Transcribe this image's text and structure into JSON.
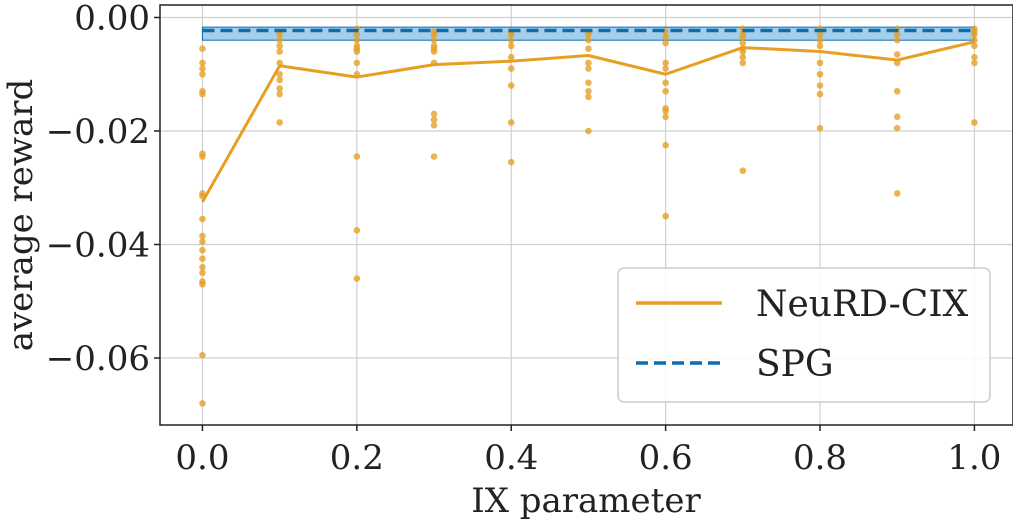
{
  "chart_data": {
    "type": "line",
    "xlabel": "IX parameter",
    "ylabel": "average reward",
    "xlim": [
      -0.055,
      1.05
    ],
    "ylim": [
      -0.0718,
      0.0022
    ],
    "grid": true,
    "legend_position": "lower-right",
    "x_ticks": [
      0.0,
      0.2,
      0.4,
      0.6,
      0.8,
      1.0
    ],
    "x_tick_labels": [
      "0.0",
      "0.2",
      "0.4",
      "0.6",
      "0.8",
      "1.0"
    ],
    "y_ticks": [
      0.0,
      -0.02,
      -0.04,
      -0.06
    ],
    "y_tick_labels": [
      "0.00",
      "−0.02",
      "−0.04",
      "−0.06"
    ],
    "series": [
      {
        "name": "NeuRD-CIX",
        "color": "#e69f23",
        "style": "solid",
        "x": [
          0.0,
          0.1,
          0.2,
          0.3,
          0.4,
          0.5,
          0.6,
          0.7,
          0.8,
          0.9,
          1.0
        ],
        "y": [
          -0.0325,
          -0.0085,
          -0.0105,
          -0.0083,
          -0.0077,
          -0.0067,
          -0.01,
          -0.0053,
          -0.006,
          -0.0075,
          -0.0043
        ]
      },
      {
        "name": "SPG",
        "color": "#0a6eb0",
        "style": "dashed",
        "x": [
          0.0,
          1.0
        ],
        "y": [
          -0.0023,
          -0.0023
        ],
        "band": [
          -0.004,
          -0.0017
        ]
      }
    ],
    "scatter": {
      "color": "#e69f23",
      "points": [
        [
          0.0,
          -0.0055
        ],
        [
          0.0,
          -0.008
        ],
        [
          0.0,
          -0.009
        ],
        [
          0.0,
          -0.01
        ],
        [
          0.0,
          -0.013
        ],
        [
          0.0,
          -0.0135
        ],
        [
          0.0,
          -0.024
        ],
        [
          0.0,
          -0.0245
        ],
        [
          0.0,
          -0.031
        ],
        [
          0.0,
          -0.0315
        ],
        [
          0.0,
          -0.0355
        ],
        [
          0.0,
          -0.0385
        ],
        [
          0.0,
          -0.0395
        ],
        [
          0.0,
          -0.041
        ],
        [
          0.0,
          -0.0425
        ],
        [
          0.0,
          -0.044
        ],
        [
          0.0,
          -0.045
        ],
        [
          0.0,
          -0.0465
        ],
        [
          0.0,
          -0.047
        ],
        [
          0.0,
          -0.0595
        ],
        [
          0.0,
          -0.068
        ],
        [
          0.1,
          -0.0025
        ],
        [
          0.1,
          -0.003
        ],
        [
          0.1,
          -0.004
        ],
        [
          0.1,
          -0.005
        ],
        [
          0.1,
          -0.006
        ],
        [
          0.1,
          -0.008
        ],
        [
          0.1,
          -0.01
        ],
        [
          0.1,
          -0.011
        ],
        [
          0.1,
          -0.0125
        ],
        [
          0.1,
          -0.0135
        ],
        [
          0.1,
          -0.0185
        ],
        [
          0.2,
          -0.002
        ],
        [
          0.2,
          -0.003
        ],
        [
          0.2,
          -0.004
        ],
        [
          0.2,
          -0.005
        ],
        [
          0.2,
          -0.0055
        ],
        [
          0.2,
          -0.006
        ],
        [
          0.2,
          -0.008
        ],
        [
          0.2,
          -0.01
        ],
        [
          0.2,
          -0.0245
        ],
        [
          0.2,
          -0.0375
        ],
        [
          0.2,
          -0.046
        ],
        [
          0.3,
          -0.0025
        ],
        [
          0.3,
          -0.003
        ],
        [
          0.3,
          -0.004
        ],
        [
          0.3,
          -0.005
        ],
        [
          0.3,
          -0.0055
        ],
        [
          0.3,
          -0.006
        ],
        [
          0.3,
          -0.008
        ],
        [
          0.3,
          -0.017
        ],
        [
          0.3,
          -0.018
        ],
        [
          0.3,
          -0.019
        ],
        [
          0.3,
          -0.0245
        ],
        [
          0.4,
          -0.0025
        ],
        [
          0.4,
          -0.003
        ],
        [
          0.4,
          -0.004
        ],
        [
          0.4,
          -0.005
        ],
        [
          0.4,
          -0.007
        ],
        [
          0.4,
          -0.009
        ],
        [
          0.4,
          -0.012
        ],
        [
          0.4,
          -0.0185
        ],
        [
          0.4,
          -0.0255
        ],
        [
          0.5,
          -0.0025
        ],
        [
          0.5,
          -0.003
        ],
        [
          0.5,
          -0.004
        ],
        [
          0.5,
          -0.0055
        ],
        [
          0.5,
          -0.008
        ],
        [
          0.5,
          -0.009
        ],
        [
          0.5,
          -0.0115
        ],
        [
          0.5,
          -0.013
        ],
        [
          0.5,
          -0.014
        ],
        [
          0.5,
          -0.02
        ],
        [
          0.6,
          -0.0025
        ],
        [
          0.6,
          -0.0035
        ],
        [
          0.6,
          -0.0045
        ],
        [
          0.6,
          -0.008
        ],
        [
          0.6,
          -0.009
        ],
        [
          0.6,
          -0.0115
        ],
        [
          0.6,
          -0.013
        ],
        [
          0.6,
          -0.016
        ],
        [
          0.6,
          -0.0165
        ],
        [
          0.6,
          -0.0175
        ],
        [
          0.6,
          -0.0225
        ],
        [
          0.6,
          -0.035
        ],
        [
          0.7,
          -0.002
        ],
        [
          0.7,
          -0.003
        ],
        [
          0.7,
          -0.0035
        ],
        [
          0.7,
          -0.0045
        ],
        [
          0.7,
          -0.0055
        ],
        [
          0.7,
          -0.006
        ],
        [
          0.7,
          -0.007
        ],
        [
          0.7,
          -0.008
        ],
        [
          0.7,
          -0.027
        ],
        [
          0.8,
          -0.002
        ],
        [
          0.8,
          -0.003
        ],
        [
          0.8,
          -0.004
        ],
        [
          0.8,
          -0.005
        ],
        [
          0.8,
          -0.008
        ],
        [
          0.8,
          -0.01
        ],
        [
          0.8,
          -0.012
        ],
        [
          0.8,
          -0.0135
        ],
        [
          0.8,
          -0.0195
        ],
        [
          0.9,
          -0.002
        ],
        [
          0.9,
          -0.003
        ],
        [
          0.9,
          -0.004
        ],
        [
          0.9,
          -0.0065
        ],
        [
          0.9,
          -0.008
        ],
        [
          0.9,
          -0.013
        ],
        [
          0.9,
          -0.0175
        ],
        [
          0.9,
          -0.0195
        ],
        [
          0.9,
          -0.031
        ],
        [
          1.0,
          -0.002
        ],
        [
          1.0,
          -0.0025
        ],
        [
          1.0,
          -0.003
        ],
        [
          1.0,
          -0.004
        ],
        [
          1.0,
          -0.005
        ],
        [
          1.0,
          -0.007
        ],
        [
          1.0,
          -0.008
        ],
        [
          1.0,
          -0.0185
        ]
      ]
    }
  }
}
